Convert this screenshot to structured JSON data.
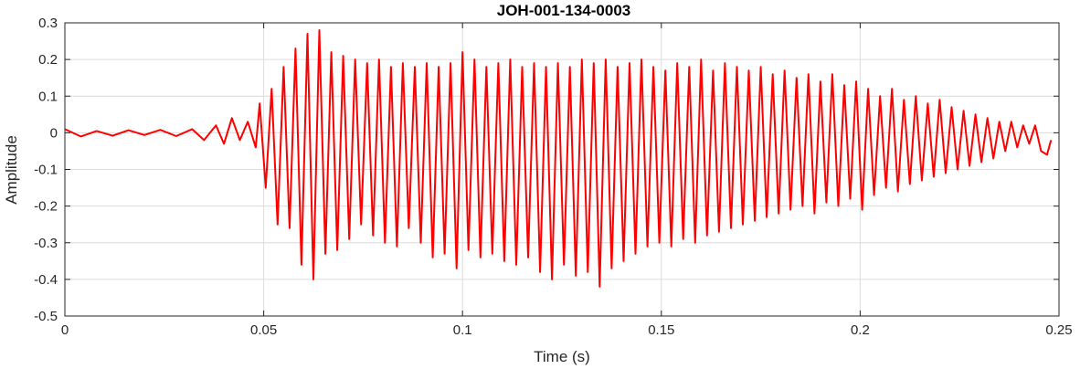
{
  "chart_data": {
    "type": "line",
    "title": "JOH-001-134-0003",
    "xlabel": "Time (s)",
    "ylabel": "Amplitude",
    "xlim": [
      0,
      0.25
    ],
    "ylim": [
      -0.5,
      0.3
    ],
    "grid": true,
    "legend": "none",
    "x_ticks": [
      0,
      0.05,
      0.1,
      0.15,
      0.2,
      0.25
    ],
    "x_tick_labels": [
      "0",
      "0.05",
      "0.1",
      "0.15",
      "0.2",
      "0.25"
    ],
    "y_ticks": [
      0.3,
      0.2,
      0.1,
      0,
      -0.1,
      -0.2,
      -0.3,
      -0.4,
      -0.5
    ],
    "y_tick_labels": [
      "0.3",
      "0.2",
      "0.1",
      "0",
      "-0.1",
      "-0.2",
      "-0.3",
      "-0.4",
      "-0.5"
    ],
    "series": [
      {
        "color": "#ff0000",
        "x": [
          0,
          0.004,
          0.008,
          0.012,
          0.016,
          0.02,
          0.024,
          0.028,
          0.032,
          0.035,
          0.038,
          0.04,
          0.042,
          0.044,
          0.046,
          0.048,
          0.049,
          0.0505,
          0.052,
          0.0535,
          0.055,
          0.0565,
          0.058,
          0.0595,
          0.061,
          0.0625,
          0.064,
          0.0655,
          0.067,
          0.0685,
          0.07,
          0.0715,
          0.073,
          0.0745,
          0.076,
          0.0775,
          0.079,
          0.0805,
          0.082,
          0.0835,
          0.085,
          0.0865,
          0.088,
          0.0895,
          0.091,
          0.0925,
          0.094,
          0.0955,
          0.097,
          0.0985,
          0.1,
          0.1015,
          0.103,
          0.1045,
          0.106,
          0.1075,
          0.109,
          0.1105,
          0.112,
          0.1135,
          0.115,
          0.1165,
          0.118,
          0.1195,
          0.121,
          0.1225,
          0.124,
          0.1255,
          0.127,
          0.1285,
          0.13,
          0.1315,
          0.133,
          0.1345,
          0.136,
          0.1375,
          0.139,
          0.1405,
          0.142,
          0.1435,
          0.145,
          0.1465,
          0.148,
          0.1495,
          0.151,
          0.1525,
          0.154,
          0.1555,
          0.157,
          0.1585,
          0.16,
          0.1615,
          0.163,
          0.1645,
          0.166,
          0.1675,
          0.169,
          0.1705,
          0.172,
          0.1735,
          0.175,
          0.1765,
          0.178,
          0.1795,
          0.181,
          0.1825,
          0.184,
          0.1855,
          0.187,
          0.1885,
          0.19,
          0.1915,
          0.193,
          0.1945,
          0.196,
          0.1975,
          0.199,
          0.2005,
          0.202,
          0.2035,
          0.205,
          0.2065,
          0.208,
          0.2095,
          0.211,
          0.2125,
          0.214,
          0.2155,
          0.217,
          0.2185,
          0.22,
          0.2215,
          0.223,
          0.2245,
          0.226,
          0.2275,
          0.229,
          0.2305,
          0.232,
          0.2335,
          0.235,
          0.2365,
          0.238,
          0.2395,
          0.241,
          0.2425,
          0.244,
          0.2455,
          0.247,
          0.248
        ],
        "y": [
          0.01,
          -0.01,
          0.005,
          -0.008,
          0.007,
          -0.006,
          0.008,
          -0.009,
          0.01,
          -0.02,
          0.02,
          -0.03,
          0.04,
          -0.02,
          0.03,
          -0.04,
          0.08,
          -0.15,
          0.12,
          -0.25,
          0.18,
          -0.26,
          0.23,
          -0.36,
          0.27,
          -0.4,
          0.28,
          -0.33,
          0.22,
          -0.32,
          0.21,
          -0.29,
          0.2,
          -0.25,
          0.19,
          -0.28,
          0.2,
          -0.3,
          0.18,
          -0.31,
          0.19,
          -0.26,
          0.18,
          -0.3,
          0.19,
          -0.34,
          0.18,
          -0.33,
          0.19,
          -0.37,
          0.22,
          -0.32,
          0.2,
          -0.34,
          0.18,
          -0.33,
          0.19,
          -0.35,
          0.2,
          -0.36,
          0.18,
          -0.34,
          0.19,
          -0.38,
          0.18,
          -0.4,
          0.19,
          -0.36,
          0.18,
          -0.39,
          0.2,
          -0.38,
          0.19,
          -0.42,
          0.2,
          -0.37,
          0.18,
          -0.35,
          0.19,
          -0.33,
          0.2,
          -0.31,
          0.18,
          -0.3,
          0.17,
          -0.31,
          0.19,
          -0.29,
          0.18,
          -0.3,
          0.2,
          -0.28,
          0.17,
          -0.27,
          0.19,
          -0.26,
          0.18,
          -0.25,
          0.17,
          -0.24,
          0.18,
          -0.23,
          0.16,
          -0.22,
          0.17,
          -0.21,
          0.15,
          -0.2,
          0.16,
          -0.22,
          0.14,
          -0.19,
          0.16,
          -0.2,
          0.13,
          -0.18,
          0.14,
          -0.21,
          0.12,
          -0.17,
          0.1,
          -0.15,
          0.12,
          -0.16,
          0.09,
          -0.14,
          0.1,
          -0.13,
          0.08,
          -0.12,
          0.09,
          -0.11,
          0.07,
          -0.1,
          0.06,
          -0.09,
          0.05,
          -0.08,
          0.04,
          -0.07,
          0.03,
          -0.05,
          0.03,
          -0.04,
          0.02,
          -0.03,
          0.02,
          -0.05,
          -0.06,
          -0.02
        ]
      }
    ]
  }
}
